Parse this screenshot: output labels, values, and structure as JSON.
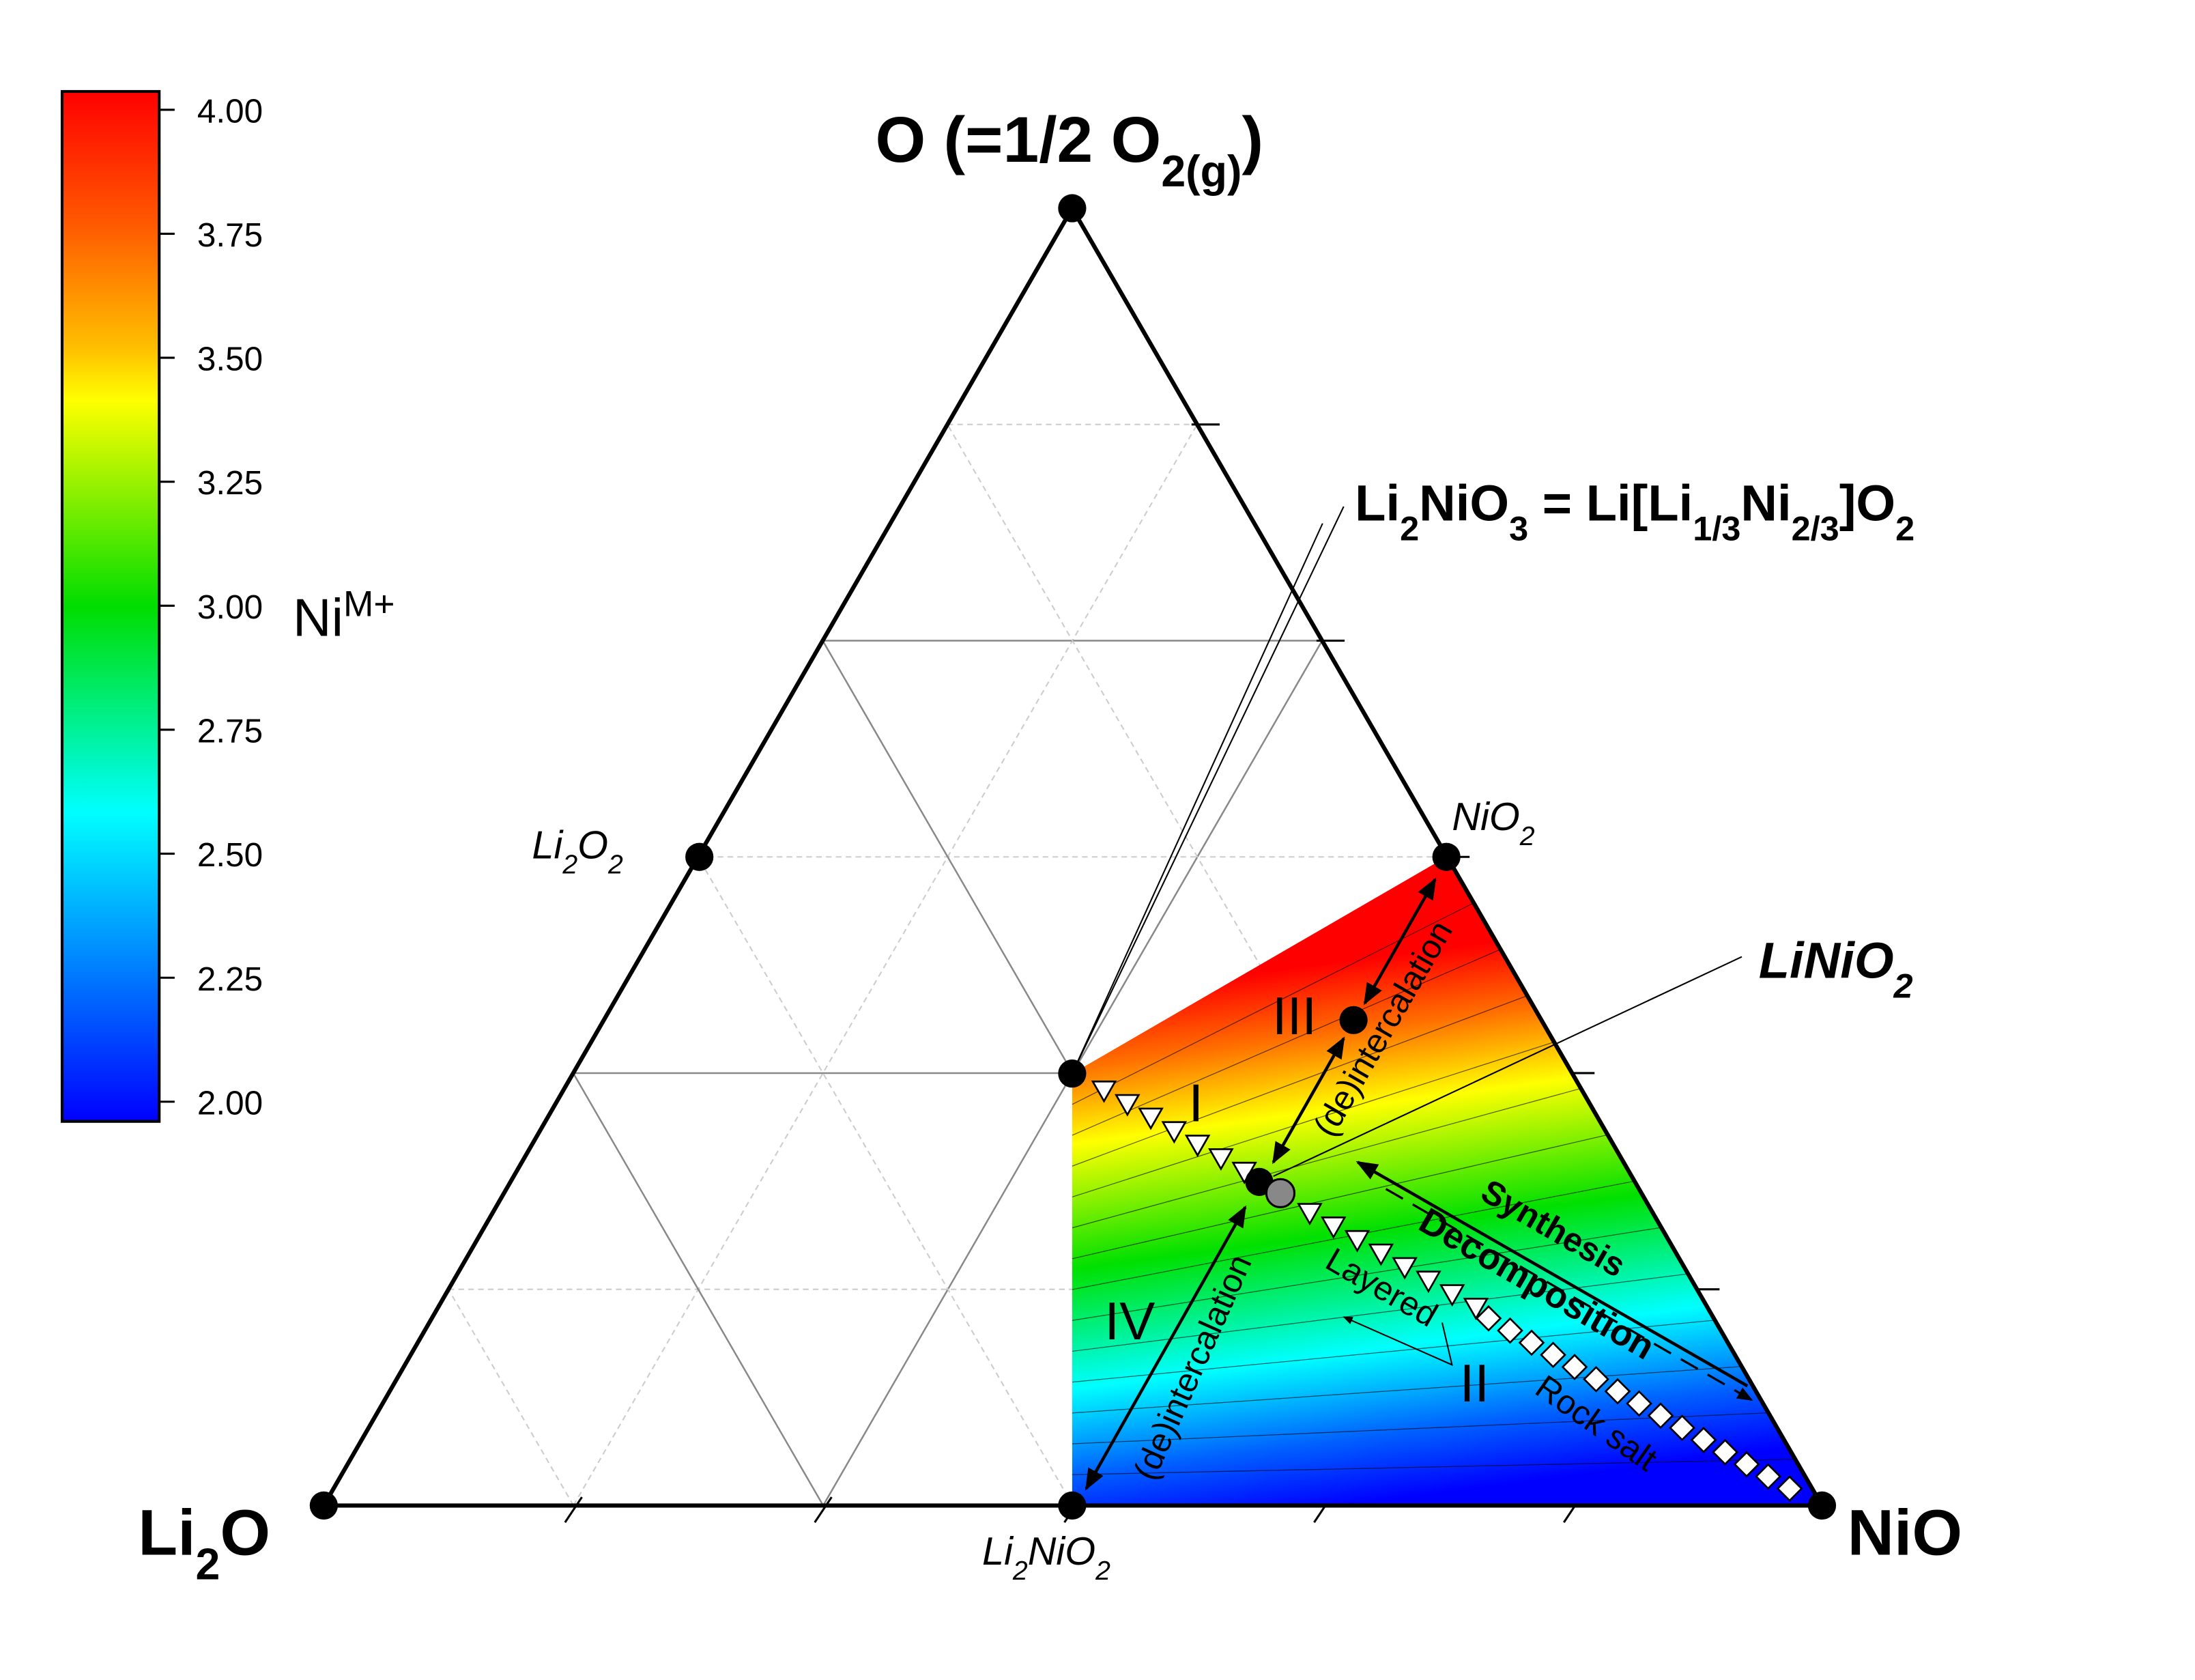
{
  "vertices": {
    "top": [
      "O (=1/2 O",
      "2(g)",
      ")"
    ],
    "left": [
      "Li",
      "2",
      "O"
    ],
    "right": [
      "NiO"
    ]
  },
  "compounds": {
    "Li2O2": [
      "Li",
      "2",
      "O",
      "2"
    ],
    "NiO2": [
      "NiO",
      "2"
    ],
    "Li2NiO2": [
      "Li",
      "2",
      "NiO",
      "2"
    ],
    "LiNiO2": [
      "LiNiO",
      "2"
    ],
    "Li2NiO3": [
      "Li",
      "2",
      "NiO",
      "3",
      " = Li[Li",
      "1/3",
      "Ni",
      "2/3",
      "]O",
      "2"
    ]
  },
  "colorbar": {
    "label": [
      "Ni",
      "M+"
    ],
    "ticks": [
      "4.00",
      "3.75",
      "3.50",
      "3.25",
      "3.00",
      "2.75",
      "2.50",
      "2.25",
      "2.00"
    ]
  },
  "regions": [
    "I",
    "II",
    "III",
    "IV"
  ],
  "annotations": {
    "deintercalation_upper": "(de)intercalation",
    "deintercalation_lower": "(de)intercalation",
    "synthesis": "Synthesis",
    "decomposition": "Decomposition",
    "layered": "Layered",
    "rock_salt": "Rock salt"
  }
}
